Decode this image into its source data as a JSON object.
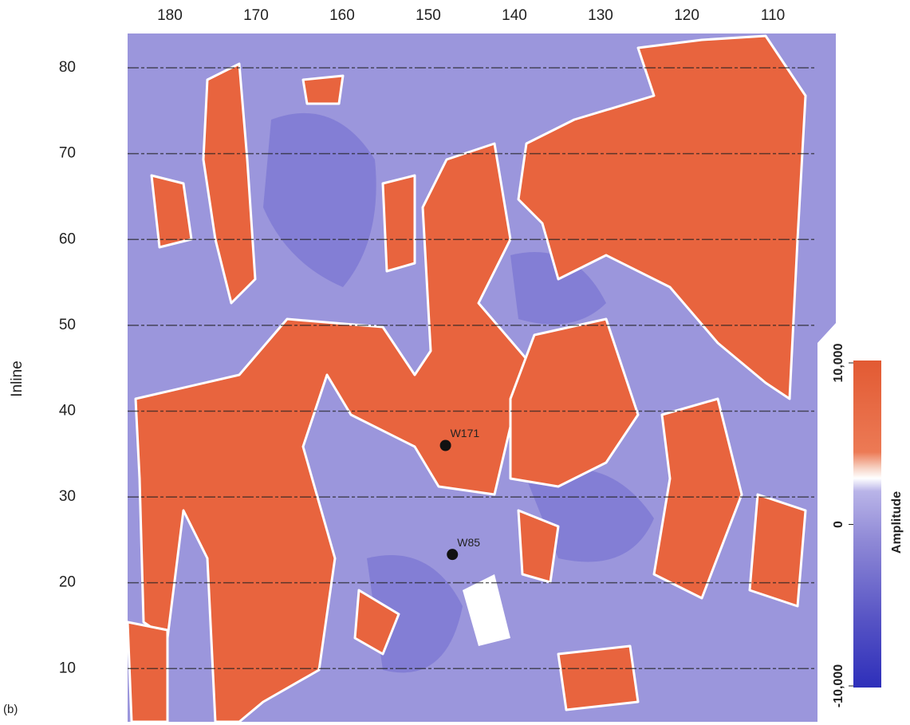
{
  "chart_data": {
    "type": "scatter",
    "panel_label": "(b)",
    "y_label": "Inline",
    "xlim": [
      184.9,
      105.1
    ],
    "xticks": [
      180,
      170,
      160,
      150,
      140,
      130,
      120,
      110
    ],
    "ylim": [
      3.8,
      84
    ],
    "yticks": [
      10,
      20,
      30,
      40,
      50,
      60,
      70,
      80
    ],
    "grid": true,
    "x": [
      148,
      147.2
    ],
    "y": [
      36,
      23.3
    ],
    "labels": [
      "W171",
      "W85"
    ],
    "color": "#111111",
    "colorbar_label": "Amplitude",
    "colorbar_lim": [
      -10000,
      10000
    ],
    "colorbar_ticks": [
      {
        "value": -10000,
        "label": "-10,000"
      },
      0,
      {
        "value": 10000,
        "label": "10,000"
      }
    ]
  }
}
